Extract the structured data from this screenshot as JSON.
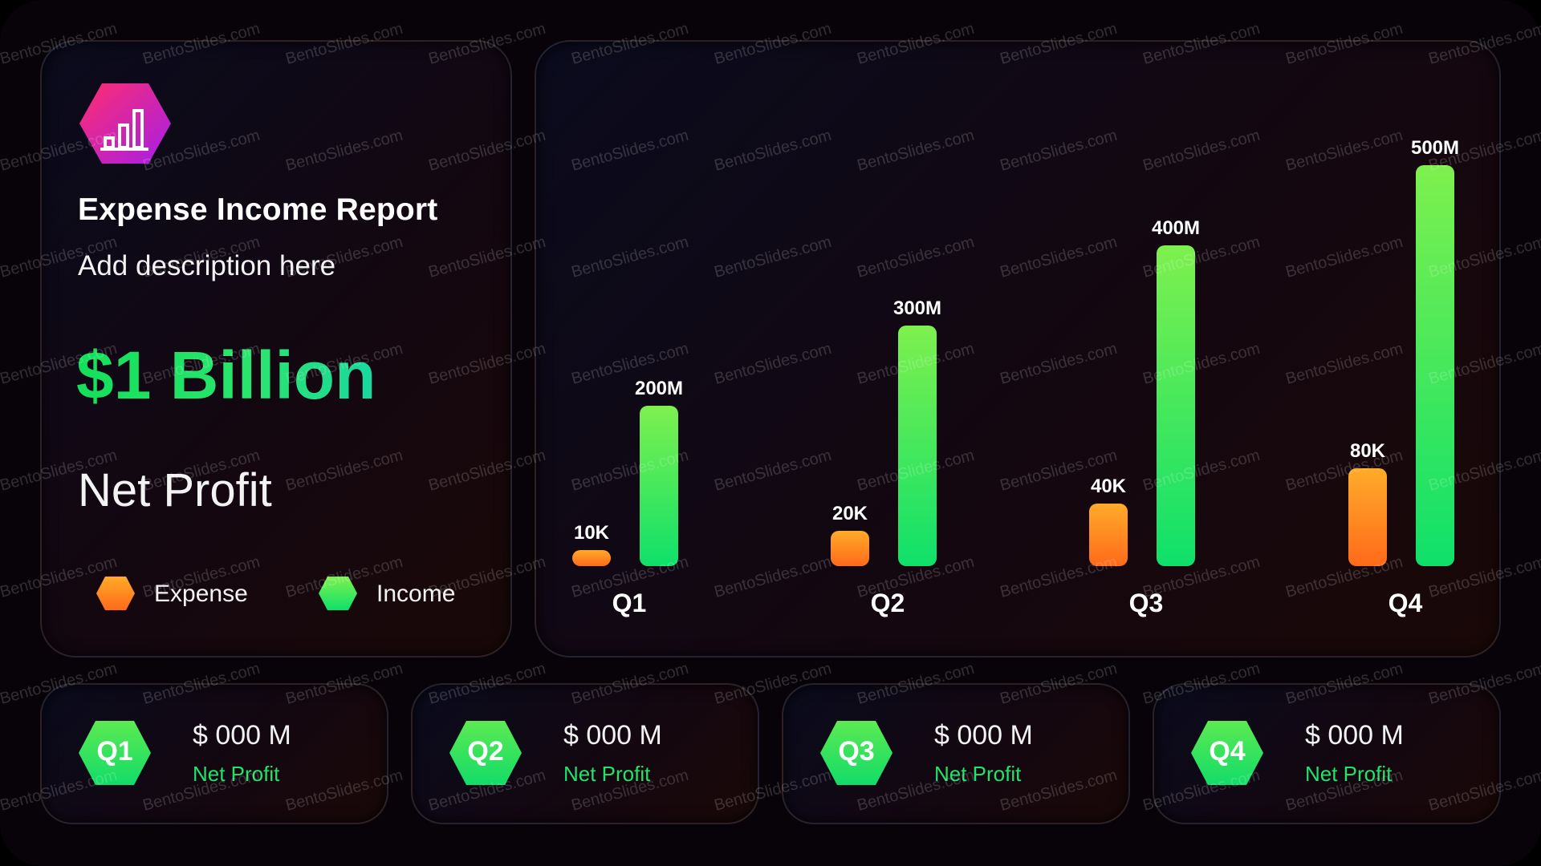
{
  "report": {
    "title": "Expense Income Report",
    "description": "Add description here",
    "value": "$1 Billion",
    "value_label": "Net Profit",
    "logo_icon": "bar-chart-icon"
  },
  "legend": [
    {
      "label": "Expense",
      "color": "#ff8a1f"
    },
    {
      "label": "Income",
      "color": "#22e36a"
    }
  ],
  "quarters": [
    {
      "badge": "Q1",
      "value": "$ 000 M",
      "label": "Net Profit"
    },
    {
      "badge": "Q2",
      "value": "$ 000 M",
      "label": "Net Profit"
    },
    {
      "badge": "Q3",
      "value": "$ 000 M",
      "label": "Net Profit"
    },
    {
      "badge": "Q4",
      "value": "$ 000 M",
      "label": "Net Profit"
    }
  ],
  "watermark": "BentoSlides.com",
  "colors": {
    "expense_top": "#ffab2a",
    "expense_bottom": "#ff6a1a",
    "income_top": "#7ef04e",
    "income_bottom": "#0fe06a",
    "accent_pink": "#ff2d7a",
    "accent_purple": "#b51de0"
  },
  "chart_data": {
    "type": "bar",
    "categories": [
      "Q1",
      "Q2",
      "Q3",
      "Q4"
    ],
    "series": [
      {
        "name": "Expense",
        "values": [
          10000,
          20000,
          40000,
          80000
        ],
        "labels": [
          "10K",
          "20K",
          "40K",
          "80K"
        ]
      },
      {
        "name": "Income",
        "values": [
          200000000,
          300000000,
          400000000,
          500000000
        ],
        "labels": [
          "200M",
          "300M",
          "400M",
          "500M"
        ]
      }
    ],
    "title": "",
    "xlabel": "",
    "ylabel": "",
    "grid": false,
    "legend_position": "left-panel"
  }
}
